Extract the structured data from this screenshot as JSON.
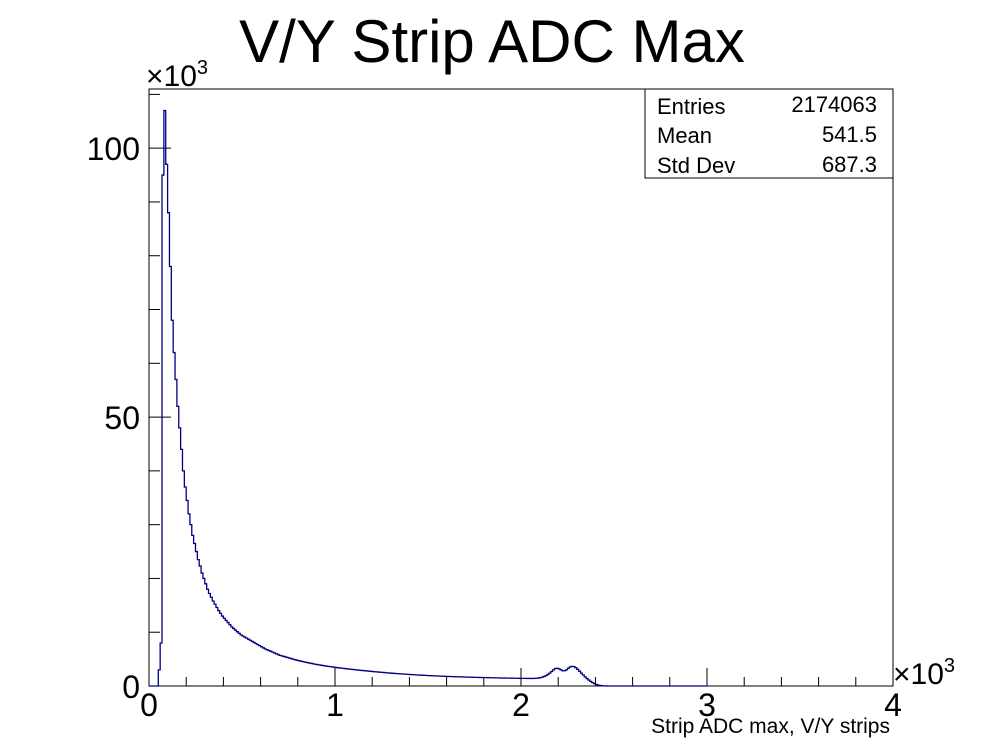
{
  "chart_data": {
    "type": "histogram",
    "title": "V/Y Strip ADC Max",
    "xlabel": "Strip ADC max, V/Y strips",
    "ylabel": "",
    "x_multiplier_label": "×10",
    "x_multiplier_exp": "3",
    "y_multiplier_label": "×10",
    "y_multiplier_exp": "3",
    "xlim": [
      0,
      4000
    ],
    "ylim": [
      0,
      111000
    ],
    "x_ticks": [
      0,
      1000,
      2000,
      3000,
      4000
    ],
    "x_tick_labels": [
      "0",
      "1",
      "2",
      "3",
      "4"
    ],
    "y_ticks": [
      0,
      50000,
      100000
    ],
    "y_tick_labels": [
      "0",
      "50",
      "100"
    ],
    "line_color": "#000080",
    "stats": {
      "entries_label": "Entries",
      "entries_value": "2174063",
      "mean_label": "Mean",
      "mean_value": "541.5",
      "stddev_label": "Std Dev",
      "stddev_value": "687.3"
    },
    "bin_width": 10,
    "values": [
      0,
      0,
      0,
      0,
      0,
      3000,
      8000,
      95000,
      107000,
      97000,
      88000,
      78000,
      68000,
      62000,
      57000,
      52000,
      48000,
      44000,
      40000,
      37000,
      34500,
      32000,
      30000,
      28000,
      26500,
      25000,
      23500,
      22300,
      21000,
      20000,
      19000,
      18000,
      17200,
      16500,
      15800,
      15200,
      14600,
      14000,
      13500,
      13000,
      12600,
      12200,
      11800,
      11400,
      11000,
      10700,
      10400,
      10100,
      9800,
      9500,
      9300,
      9100,
      8900,
      8700,
      8500,
      8300,
      8100,
      7900,
      7700,
      7500,
      7300,
      7100,
      6900,
      6750,
      6600,
      6450,
      6300,
      6150,
      6000,
      5850,
      5700,
      5600,
      5500,
      5400,
      5300,
      5200,
      5100,
      5000,
      4900,
      4800,
      4720,
      4640,
      4560,
      4480,
      4400,
      4330,
      4260,
      4190,
      4120,
      4050,
      3990,
      3930,
      3870,
      3810,
      3750,
      3700,
      3650,
      3600,
      3550,
      3500,
      3450,
      3400,
      3360,
      3320,
      3280,
      3240,
      3200,
      3160,
      3120,
      3080,
      3040,
      3000,
      2965,
      2930,
      2895,
      2860,
      2825,
      2790,
      2755,
      2720,
      2685,
      2650,
      2620,
      2590,
      2560,
      2530,
      2500,
      2470,
      2440,
      2410,
      2380,
      2355,
      2330,
      2305,
      2280,
      2255,
      2230,
      2205,
      2180,
      2155,
      2130,
      2110,
      2090,
      2070,
      2050,
      2030,
      2010,
      1990,
      1970,
      1950,
      1930,
      1915,
      1900,
      1885,
      1870,
      1855,
      1840,
      1825,
      1810,
      1795,
      1780,
      1768,
      1756,
      1744,
      1732,
      1720,
      1708,
      1696,
      1684,
      1672,
      1660,
      1650,
      1640,
      1630,
      1620,
      1610,
      1600,
      1590,
      1580,
      1570,
      1560,
      1552,
      1544,
      1536,
      1528,
      1520,
      1512,
      1504,
      1496,
      1488,
      1480,
      1474,
      1468,
      1462,
      1456,
      1450,
      1444,
      1438,
      1432,
      1426,
      1420,
      1416,
      1412,
      1410,
      1408,
      1406,
      1410,
      1420,
      1440,
      1480,
      1550,
      1650,
      1780,
      1950,
      2150,
      2400,
      2700,
      3000,
      3250,
      3300,
      3200,
      3000,
      2850,
      2850,
      3000,
      3300,
      3550,
      3650,
      3600,
      3400,
      3100,
      2750,
      2400,
      2050,
      1700,
      1380,
      1100,
      850,
      630,
      450,
      300,
      190,
      110,
      60,
      30,
      15,
      8,
      4,
      2,
      1,
      0,
      0,
      0,
      0,
      0,
      0,
      0,
      0,
      0,
      0,
      0,
      0,
      0,
      0,
      0,
      0,
      0,
      0,
      0,
      0,
      0,
      0,
      0,
      0,
      0,
      0,
      0,
      0,
      0,
      0,
      0,
      0,
      0,
      0,
      0,
      0,
      0,
      0,
      0,
      0,
      0,
      0,
      0,
      0,
      0,
      0,
      0,
      0,
      0,
      0
    ]
  }
}
